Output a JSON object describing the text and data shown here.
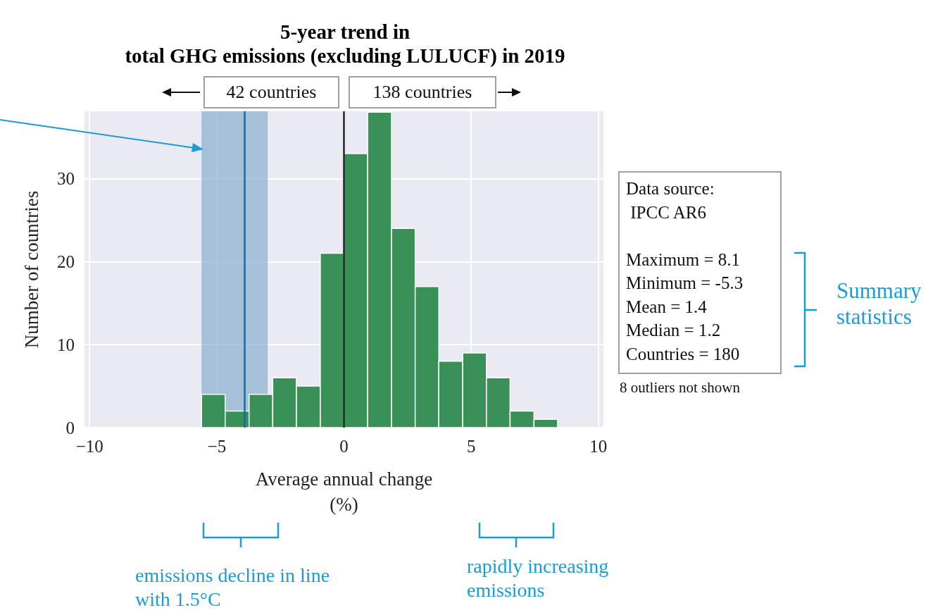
{
  "chart_data": {
    "type": "histogram",
    "title": "5-year trend in\ntotal GHG emissions (excluding LULUCF) in 2019",
    "xlabel": "Average annual change\n(%)",
    "ylabel": "Number of countries",
    "bins": [
      -5.6,
      -4.67,
      -3.73,
      -2.8,
      -1.87,
      -0.93,
      0,
      0.93,
      1.87,
      2.8,
      3.73,
      4.67,
      5.6,
      6.53,
      7.47,
      8.4
    ],
    "values": [
      4,
      2,
      4,
      6,
      5,
      21,
      33,
      38,
      24,
      17,
      8,
      9,
      6,
      2,
      1
    ],
    "color": "#3a9158",
    "xlim": [
      -10.2,
      10.2
    ],
    "xticks": [
      {
        "value": -10,
        "label": "−10"
      },
      {
        "value": -5,
        "label": "−5"
      },
      0,
      5,
      10
    ],
    "ylim": [
      0,
      38.1
    ],
    "yticks": [
      0,
      10,
      20,
      30
    ],
    "grid": true,
    "bands": [
      {
        "axis": "x",
        "from": -5.6,
        "to": -3.0,
        "color": "#7fa9c9"
      }
    ],
    "ref_lines": [
      {
        "axis": "x",
        "value": -3.9,
        "color": "#1a6a9a"
      },
      {
        "axis": "x",
        "value": 0,
        "color": "#222222"
      }
    ],
    "annotations": [
      "42 countries",
      "138 countries",
      "Data source:\n IPCC AR6\n\nMaximum = 8.1\nMinimum = -5.3\nMean = 1.4\nMedian = 1.2\nCountries = 180",
      "8 outliers not shown",
      "Summary statistics",
      "emissions decline in line with 1.5°C",
      "rapidly increasing emissions"
    ]
  }
}
